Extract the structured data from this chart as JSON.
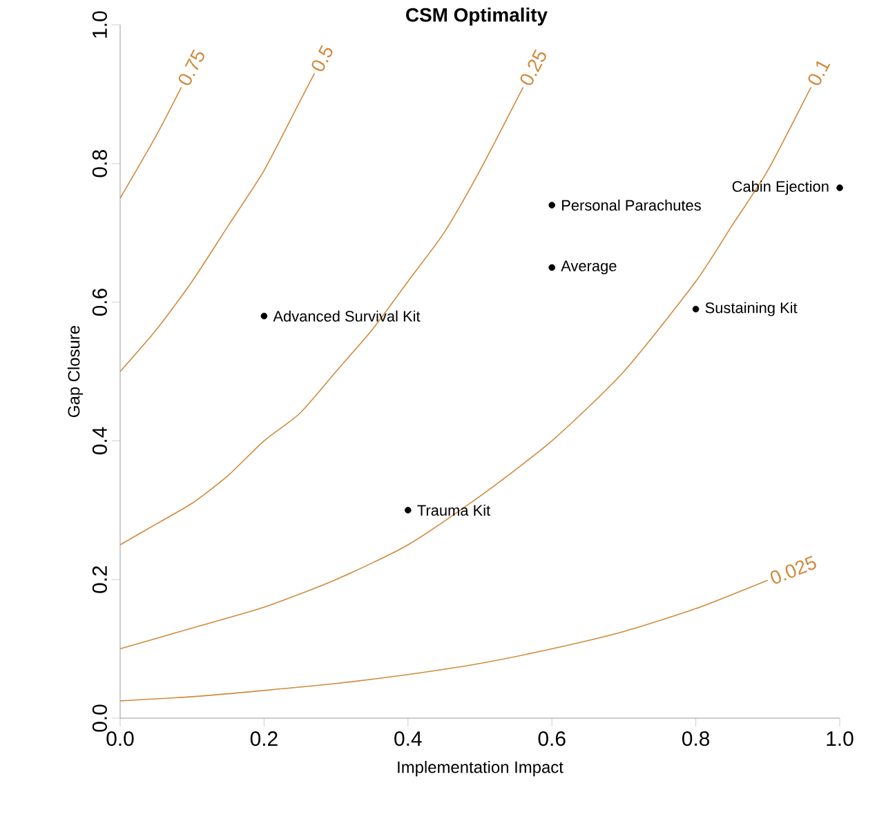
{
  "chart_data": {
    "type": "scatter",
    "title": "CSM Optimality",
    "xlabel": "Implementation Impact",
    "ylabel": "Gap Closure",
    "xlim": [
      0,
      1
    ],
    "ylim": [
      0,
      1
    ],
    "xticks": [
      {
        "value": 0,
        "label": "0.0"
      },
      0.2,
      0.4,
      0.6,
      0.8,
      {
        "value": 1,
        "label": "1.0"
      }
    ],
    "yticks": [
      {
        "value": 0,
        "label": "0.0"
      },
      0.2,
      0.4,
      0.6,
      0.8,
      {
        "value": 1,
        "label": "1.0"
      }
    ],
    "grid": false,
    "series": [
      {
        "color": "#000000",
        "marker": "circle",
        "x": [
          0.2,
          0.4,
          0.6,
          0.6,
          0.8,
          1.0
        ],
        "values": [
          0.58,
          0.3,
          0.74,
          0.65,
          0.59,
          0.765
        ]
      },
      {
        "type": "line",
        "name": "0.75",
        "color": "#d08a3c",
        "marker": "none",
        "x": [
          0,
          0.05,
          0.085
        ],
        "values": [
          0.75,
          0.84,
          0.91
        ]
      },
      {
        "type": "line",
        "name": "0.5",
        "color": "#d08a3c",
        "marker": "none",
        "x": [
          0,
          0.05,
          0.1,
          0.15,
          0.2,
          0.25,
          0.27
        ],
        "values": [
          0.5,
          0.56,
          0.63,
          0.71,
          0.79,
          0.89,
          0.93
        ]
      },
      {
        "type": "line",
        "name": "0.25",
        "color": "#d08a3c",
        "marker": "none",
        "x": [
          0,
          0.05,
          0.1,
          0.15,
          0.2,
          0.25,
          0.3,
          0.35,
          0.4,
          0.45,
          0.5,
          0.56
        ],
        "values": [
          0.25,
          0.28,
          0.31,
          0.35,
          0.4,
          0.44,
          0.5,
          0.56,
          0.63,
          0.7,
          0.79,
          0.91
        ]
      },
      {
        "type": "line",
        "name": "0.1",
        "color": "#d08a3c",
        "marker": "none",
        "x": [
          0,
          0.1,
          0.2,
          0.3,
          0.4,
          0.5,
          0.6,
          0.7,
          0.8,
          0.85,
          0.9,
          0.96
        ],
        "values": [
          0.1,
          0.13,
          0.16,
          0.2,
          0.25,
          0.32,
          0.4,
          0.5,
          0.63,
          0.71,
          0.79,
          0.91
        ]
      },
      {
        "type": "line",
        "name": "0.025",
        "color": "#d08a3c",
        "marker": "none",
        "x": [
          0,
          0.1,
          0.2,
          0.3,
          0.4,
          0.5,
          0.6,
          0.7,
          0.8,
          0.9
        ],
        "values": [
          0.025,
          0.031,
          0.04,
          0.05,
          0.063,
          0.079,
          0.1,
          0.125,
          0.158,
          0.199
        ]
      }
    ],
    "annotations": [
      {
        "text": "Advanced Survival Kit",
        "x": 0.2,
        "y": 0.58
      },
      {
        "text": "Trauma Kit",
        "x": 0.4,
        "y": 0.3
      },
      {
        "text": "Personal Parachutes",
        "x": 0.6,
        "y": 0.74
      },
      {
        "text": "Average",
        "x": 0.6,
        "y": 0.65
      },
      {
        "text": "Sustaining Kit",
        "x": 0.8,
        "y": 0.59
      },
      {
        "text": "Cabin Ejection",
        "x": 1.0,
        "y": 0.765
      }
    ]
  }
}
